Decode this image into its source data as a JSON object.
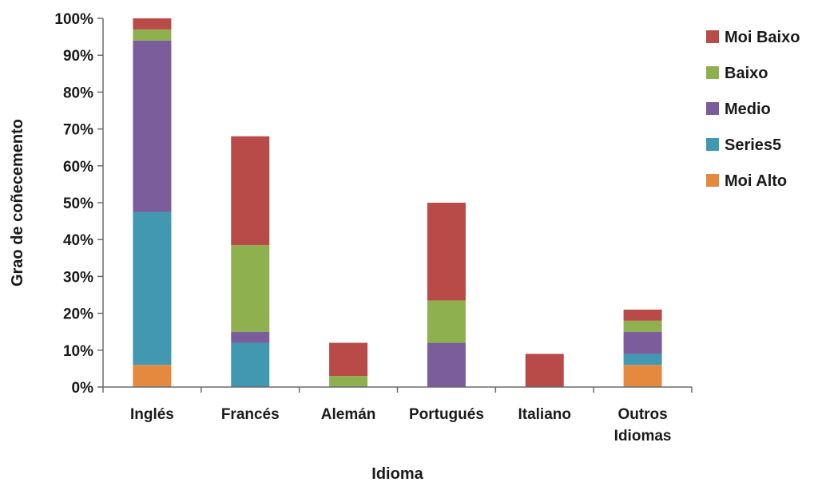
{
  "chart_data": {
    "type": "bar",
    "stacked": true,
    "percent_axis": true,
    "categories": [
      [
        "Inglés"
      ],
      [
        "Francés"
      ],
      [
        "Alemán"
      ],
      [
        "Portugués"
      ],
      [
        "Italiano"
      ],
      [
        "Outros",
        "Idiomas"
      ]
    ],
    "series": [
      {
        "name": "Moi Alto",
        "color": "#e5893f",
        "values": [
          6,
          0,
          0,
          0,
          0,
          6
        ]
      },
      {
        "name": "Series5",
        "color": "#4198b0",
        "values": [
          41.5,
          12,
          0,
          0,
          0,
          3
        ]
      },
      {
        "name": "Medio",
        "color": "#7b5d9c",
        "values": [
          46.5,
          3,
          0,
          12,
          0,
          6
        ]
      },
      {
        "name": "Baixo",
        "color": "#8fb04f",
        "values": [
          3,
          23.5,
          3,
          11.5,
          0,
          3
        ]
      },
      {
        "name": "Moi Baixo",
        "color": "#b84a47",
        "values": [
          3,
          29.5,
          9,
          26.5,
          9,
          3
        ]
      }
    ],
    "legend_order": [
      "Moi Baixo",
      "Baixo",
      "Medio",
      "Series5",
      "Moi Alto"
    ],
    "ylim": [
      0,
      100
    ],
    "yticks": [
      0,
      10,
      20,
      30,
      40,
      50,
      60,
      70,
      80,
      90,
      100
    ],
    "ytick_suffix": "%",
    "xlabel": "Idioma",
    "ylabel": "Grao de coñecemento",
    "legend_position": "right",
    "grid": false
  }
}
